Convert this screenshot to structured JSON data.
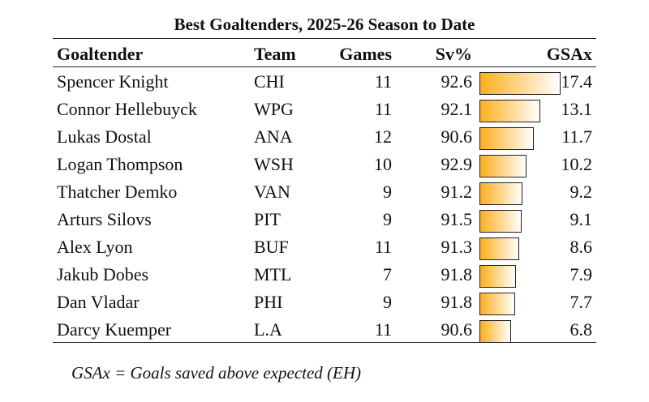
{
  "chart_data": {
    "type": "table",
    "title": "Best Goaltenders, 2025-26 Season to Date",
    "columns": [
      "Goaltender",
      "Team",
      "Games",
      "Sv%",
      "GSAx"
    ],
    "rows": [
      {
        "name": "Spencer Knight",
        "team": "CHI",
        "games": 11,
        "sv": "92.6",
        "gsax": 17.4
      },
      {
        "name": "Connor Hellebuyck",
        "team": "WPG",
        "games": 11,
        "sv": "92.1",
        "gsax": 13.1
      },
      {
        "name": "Lukas Dostal",
        "team": "ANA",
        "games": 12,
        "sv": "90.6",
        "gsax": 11.7
      },
      {
        "name": "Logan Thompson",
        "team": "WSH",
        "games": 10,
        "sv": "92.9",
        "gsax": 10.2
      },
      {
        "name": "Thatcher Demko",
        "team": "VAN",
        "games": 9,
        "sv": "91.2",
        "gsax": 9.2
      },
      {
        "name": "Arturs Silovs",
        "team": "PIT",
        "games": 9,
        "sv": "91.5",
        "gsax": 9.1
      },
      {
        "name": "Alex Lyon",
        "team": "BUF",
        "games": 11,
        "sv": "91.3",
        "gsax": 8.6
      },
      {
        "name": "Jakub Dobes",
        "team": "MTL",
        "games": 7,
        "sv": "91.8",
        "gsax": 7.9
      },
      {
        "name": "Dan Vladar",
        "team": "PHI",
        "games": 9,
        "sv": "91.8",
        "gsax": 7.7
      },
      {
        "name": "Darcy Kuemper",
        "team": "L.A",
        "games": 11,
        "sv": "90.6",
        "gsax": 6.8
      }
    ],
    "bar_color": "#fdae1f",
    "footnote": "GSAx = Goals saved above expected (EH)"
  }
}
